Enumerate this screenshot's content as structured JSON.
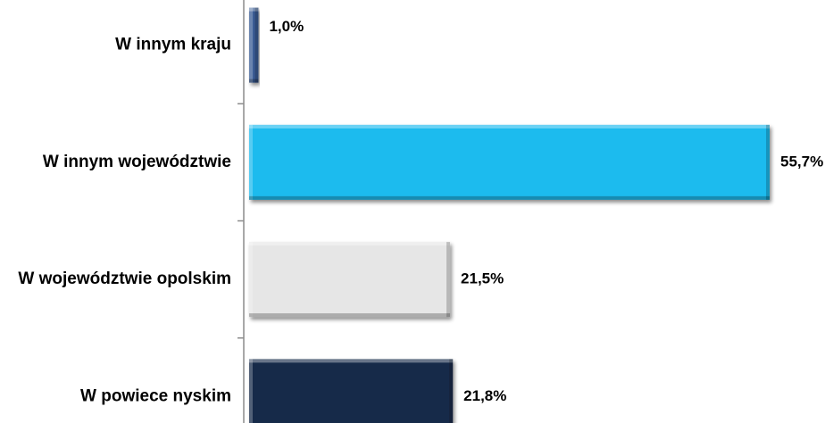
{
  "chart_data": {
    "type": "bar",
    "orientation": "horizontal",
    "categories": [
      "W innym kraju",
      "W innym województwie",
      "W województwie opolskim",
      "W powiece nyskim"
    ],
    "values": [
      1.0,
      55.7,
      21.5,
      21.8
    ],
    "value_labels": [
      "1,0%",
      "55,7%",
      "21,5%",
      "21,8%"
    ],
    "colors": [
      "#3a5b94",
      "#1ebbee",
      "#e6e6e6",
      "#172c4a"
    ],
    "xlim": [
      0,
      55.7
    ],
    "grid": false,
    "legend": "none"
  }
}
